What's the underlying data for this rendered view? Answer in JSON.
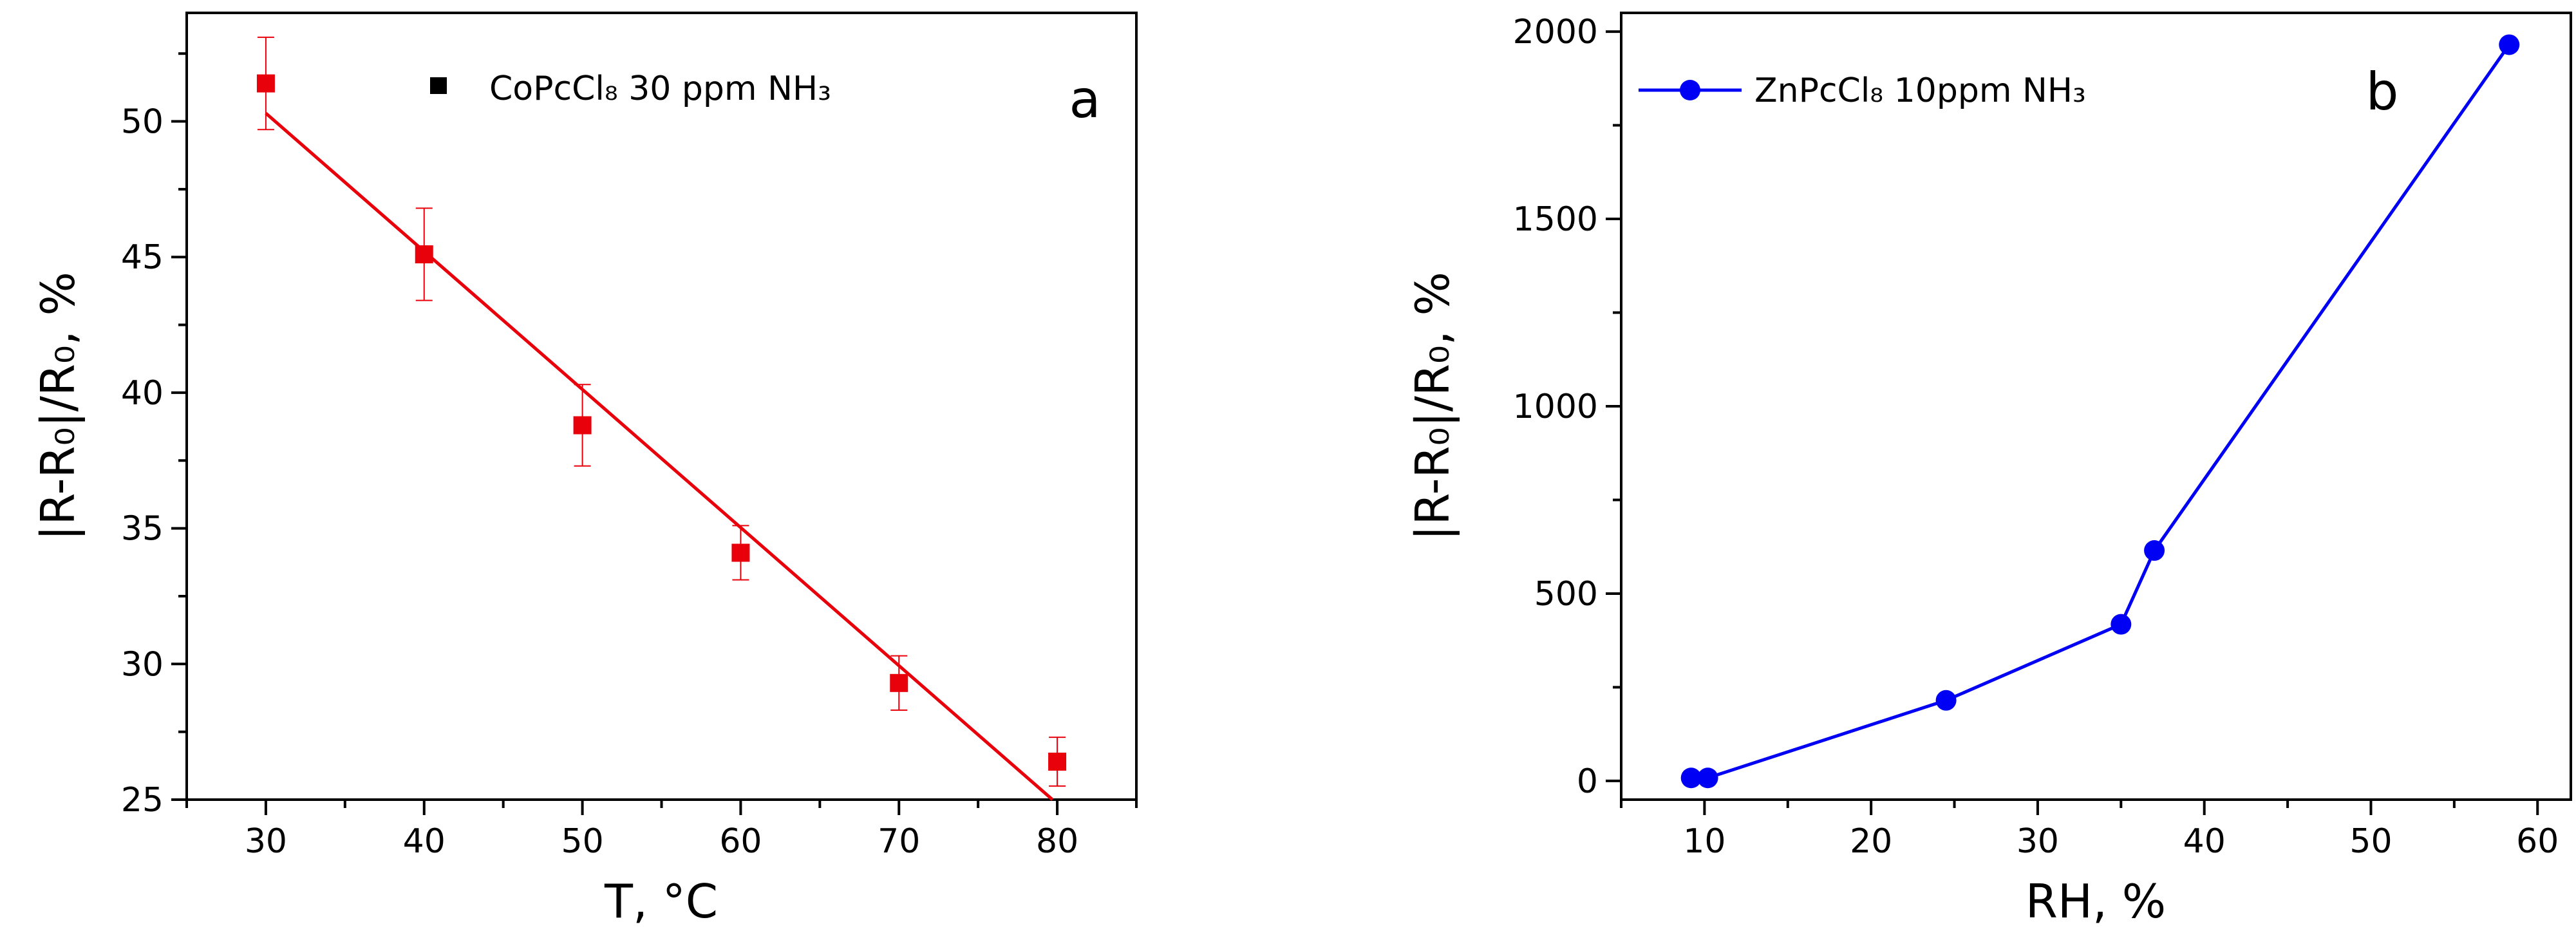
{
  "chart_data": [
    {
      "type": "scatter",
      "panel_label": "a",
      "xlabel": "T, °C",
      "ylabel": "|R-R₀|/R₀, %",
      "xlim": [
        25,
        85
      ],
      "ylim": [
        25,
        54
      ],
      "xticks": [
        30,
        40,
        50,
        60,
        70,
        80
      ],
      "yticks": [
        25,
        30,
        35,
        40,
        45,
        50
      ],
      "legend": {
        "position": "top",
        "label": "CoPcCl₈ 30 ppm NH₃"
      },
      "series": [
        {
          "name": "CoPcCl₈ 30 ppm NH₃",
          "x": [
            30,
            40,
            50,
            60,
            70,
            80
          ],
          "y": [
            51.4,
            45.1,
            38.8,
            34.1,
            29.3,
            26.4
          ],
          "yerr": [
            1.7,
            1.7,
            1.5,
            1.0,
            1.0,
            0.9
          ],
          "color": "#e8000b"
        }
      ],
      "fit_line": {
        "x": [
          30,
          79.7
        ],
        "y": [
          50.3,
          25.0
        ],
        "color": "#e8000b"
      },
      "grid": false
    },
    {
      "type": "line",
      "panel_label": "b",
      "xlabel": "RH, %",
      "ylabel": "|R-R₀|/R₀, %",
      "xlim": [
        5,
        62
      ],
      "ylim": [
        -50,
        2050
      ],
      "xticks": [
        10,
        20,
        30,
        40,
        50,
        60
      ],
      "yticks": [
        0,
        500,
        1000,
        1500,
        2000
      ],
      "legend": {
        "position": "top-left",
        "label": "ZnPcCl₈ 10ppm NH₃"
      },
      "series": [
        {
          "name": "ZnPcCl₈ 10ppm NH₃",
          "x": [
            9.2,
            10.2,
            24.5,
            35.0,
            37.0,
            58.3
          ],
          "y": [
            8,
            8,
            215,
            418,
            615,
            1965
          ],
          "color": "#0000f5"
        }
      ],
      "grid": false
    }
  ]
}
